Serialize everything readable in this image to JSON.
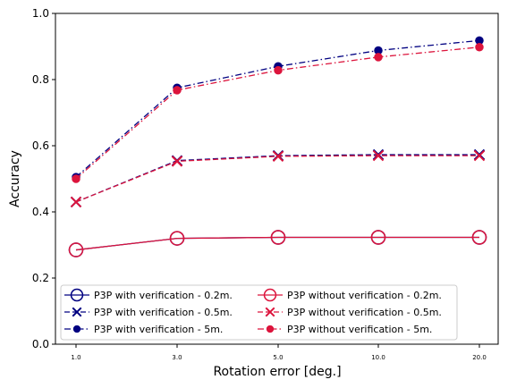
{
  "chart_data": {
    "type": "line",
    "xlabel": "Rotation error [deg.]",
    "ylabel": "Accuracy",
    "x": [
      "1.0",
      "3.0",
      "5.0",
      "10.0",
      "20.0"
    ],
    "ylim": [
      0,
      1
    ],
    "y_ticks": [
      "0.0",
      "0.2",
      "0.4",
      "0.6",
      "0.8",
      "1.0"
    ],
    "grid": false,
    "legend_position": "lower-center",
    "series": [
      {
        "name": "P3P with verification - 0.2m.",
        "color": "#000080",
        "linestyle": "solid",
        "marker": "open-circle",
        "values": [
          0.285,
          0.32,
          0.323,
          0.323,
          0.323
        ]
      },
      {
        "name": "P3P with verification - 0.5m.",
        "color": "#000080",
        "linestyle": "dashed",
        "marker": "x",
        "values": [
          0.43,
          0.555,
          0.57,
          0.573,
          0.573
        ]
      },
      {
        "name": "P3P with verification - 5m.",
        "color": "#000080",
        "linestyle": "dashdot",
        "marker": "filled-circle",
        "values": [
          0.505,
          0.775,
          0.84,
          0.888,
          0.918
        ]
      },
      {
        "name": "P3P without verification - 0.2m.",
        "color": "#dc143c",
        "linestyle": "solid",
        "marker": "open-circle",
        "values": [
          0.285,
          0.32,
          0.323,
          0.323,
          0.323
        ]
      },
      {
        "name": "P3P without verification - 0.5m.",
        "color": "#dc143c",
        "linestyle": "dashed",
        "marker": "x",
        "values": [
          0.43,
          0.553,
          0.568,
          0.57,
          0.57
        ]
      },
      {
        "name": "P3P without verification - 5m.",
        "color": "#dc143c",
        "linestyle": "dashdot",
        "marker": "filled-circle",
        "values": [
          0.5,
          0.768,
          0.828,
          0.868,
          0.898
        ]
      }
    ]
  }
}
